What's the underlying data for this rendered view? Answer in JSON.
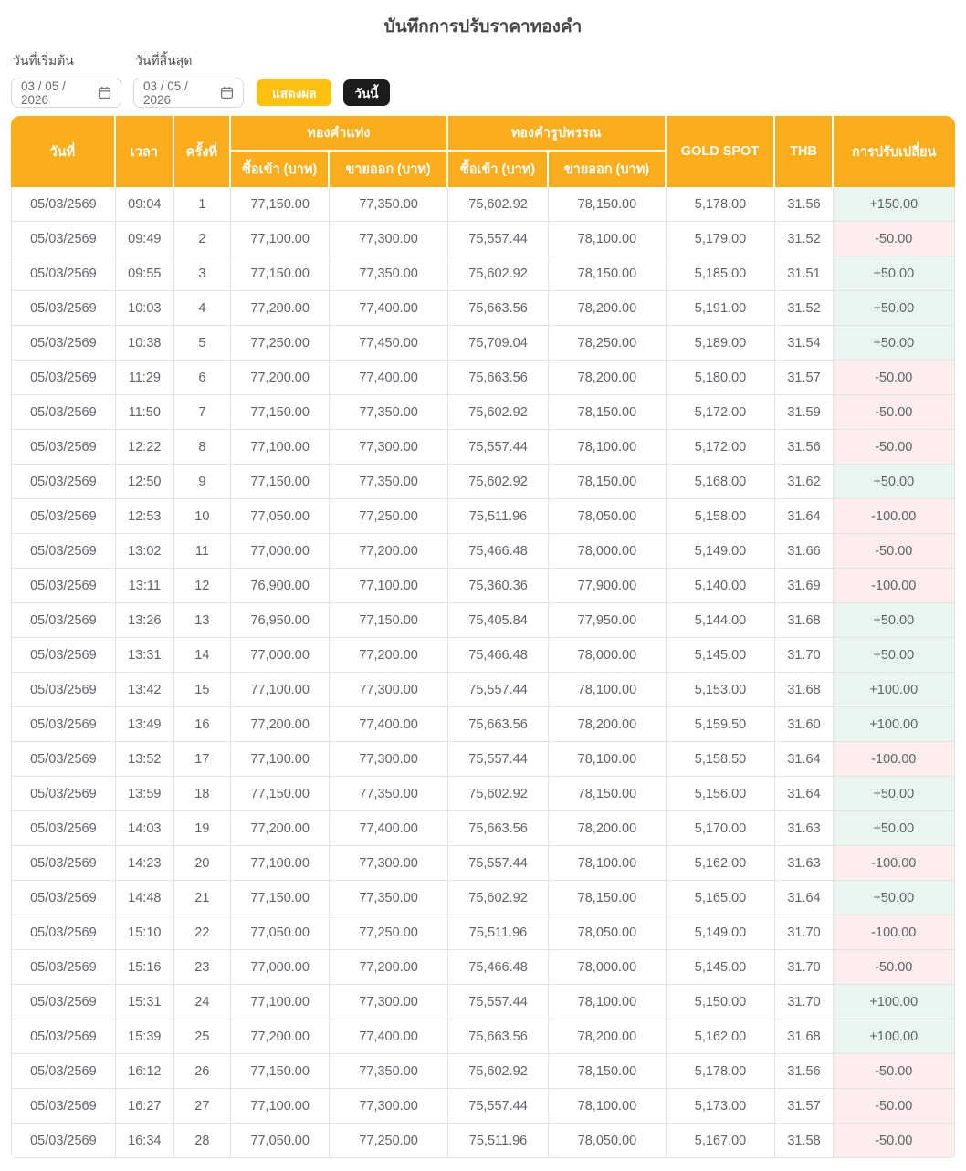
{
  "page": {
    "title": "บันทึกการปรับราคาทองคำ"
  },
  "filters": {
    "start_date": {
      "label": "วันที่เริ่มต้น",
      "value": "03 / 05 / 2026"
    },
    "end_date": {
      "label": "วันที่สิ้นสุด",
      "value": "03 / 05 / 2026"
    },
    "show_button_label": "แสดงผล",
    "today_button_label": "วันนี้"
  },
  "table": {
    "header": {
      "date": "วันที่",
      "time": "เวลา",
      "round": "ครั้งที่",
      "gold_bar_group": "ทองคำแท่ง",
      "gold_ornament_group": "ทองคำรูปพรรณ",
      "buy_baht": "ซื้อเข้า (บาท)",
      "sell_baht": "ขายออก (บาท)",
      "gold_spot": "GOLD SPOT",
      "thb": "THB",
      "change": "การปรับเปลี่ยน"
    },
    "rows": [
      {
        "date": "05/03/2569",
        "time": "09:04",
        "no": "1",
        "bar_buy": "77,150.00",
        "bar_sell": "77,350.00",
        "ornament_buy": "75,602.92",
        "ornament_sell": "78,150.00",
        "gold_spot": "5,178.00",
        "thb": "31.56",
        "change": "+150.00"
      },
      {
        "date": "05/03/2569",
        "time": "09:49",
        "no": "2",
        "bar_buy": "77,100.00",
        "bar_sell": "77,300.00",
        "ornament_buy": "75,557.44",
        "ornament_sell": "78,100.00",
        "gold_spot": "5,179.00",
        "thb": "31.52",
        "change": "-50.00"
      },
      {
        "date": "05/03/2569",
        "time": "09:55",
        "no": "3",
        "bar_buy": "77,150.00",
        "bar_sell": "77,350.00",
        "ornament_buy": "75,602.92",
        "ornament_sell": "78,150.00",
        "gold_spot": "5,185.00",
        "thb": "31.51",
        "change": "+50.00"
      },
      {
        "date": "05/03/2569",
        "time": "10:03",
        "no": "4",
        "bar_buy": "77,200.00",
        "bar_sell": "77,400.00",
        "ornament_buy": "75,663.56",
        "ornament_sell": "78,200.00",
        "gold_spot": "5,191.00",
        "thb": "31.52",
        "change": "+50.00"
      },
      {
        "date": "05/03/2569",
        "time": "10:38",
        "no": "5",
        "bar_buy": "77,250.00",
        "bar_sell": "77,450.00",
        "ornament_buy": "75,709.04",
        "ornament_sell": "78,250.00",
        "gold_spot": "5,189.00",
        "thb": "31.54",
        "change": "+50.00"
      },
      {
        "date": "05/03/2569",
        "time": "11:29",
        "no": "6",
        "bar_buy": "77,200.00",
        "bar_sell": "77,400.00",
        "ornament_buy": "75,663.56",
        "ornament_sell": "78,200.00",
        "gold_spot": "5,180.00",
        "thb": "31.57",
        "change": "-50.00"
      },
      {
        "date": "05/03/2569",
        "time": "11:50",
        "no": "7",
        "bar_buy": "77,150.00",
        "bar_sell": "77,350.00",
        "ornament_buy": "75,602.92",
        "ornament_sell": "78,150.00",
        "gold_spot": "5,172.00",
        "thb": "31.59",
        "change": "-50.00"
      },
      {
        "date": "05/03/2569",
        "time": "12:22",
        "no": "8",
        "bar_buy": "77,100.00",
        "bar_sell": "77,300.00",
        "ornament_buy": "75,557.44",
        "ornament_sell": "78,100.00",
        "gold_spot": "5,172.00",
        "thb": "31.56",
        "change": "-50.00"
      },
      {
        "date": "05/03/2569",
        "time": "12:50",
        "no": "9",
        "bar_buy": "77,150.00",
        "bar_sell": "77,350.00",
        "ornament_buy": "75,602.92",
        "ornament_sell": "78,150.00",
        "gold_spot": "5,168.00",
        "thb": "31.62",
        "change": "+50.00"
      },
      {
        "date": "05/03/2569",
        "time": "12:53",
        "no": "10",
        "bar_buy": "77,050.00",
        "bar_sell": "77,250.00",
        "ornament_buy": "75,511.96",
        "ornament_sell": "78,050.00",
        "gold_spot": "5,158.00",
        "thb": "31.64",
        "change": "-100.00"
      },
      {
        "date": "05/03/2569",
        "time": "13:02",
        "no": "11",
        "bar_buy": "77,000.00",
        "bar_sell": "77,200.00",
        "ornament_buy": "75,466.48",
        "ornament_sell": "78,000.00",
        "gold_spot": "5,149.00",
        "thb": "31.66",
        "change": "-50.00"
      },
      {
        "date": "05/03/2569",
        "time": "13:11",
        "no": "12",
        "bar_buy": "76,900.00",
        "bar_sell": "77,100.00",
        "ornament_buy": "75,360.36",
        "ornament_sell": "77,900.00",
        "gold_spot": "5,140.00",
        "thb": "31.69",
        "change": "-100.00"
      },
      {
        "date": "05/03/2569",
        "time": "13:26",
        "no": "13",
        "bar_buy": "76,950.00",
        "bar_sell": "77,150.00",
        "ornament_buy": "75,405.84",
        "ornament_sell": "77,950.00",
        "gold_spot": "5,144.00",
        "thb": "31.68",
        "change": "+50.00"
      },
      {
        "date": "05/03/2569",
        "time": "13:31",
        "no": "14",
        "bar_buy": "77,000.00",
        "bar_sell": "77,200.00",
        "ornament_buy": "75,466.48",
        "ornament_sell": "78,000.00",
        "gold_spot": "5,145.00",
        "thb": "31.70",
        "change": "+50.00"
      },
      {
        "date": "05/03/2569",
        "time": "13:42",
        "no": "15",
        "bar_buy": "77,100.00",
        "bar_sell": "77,300.00",
        "ornament_buy": "75,557.44",
        "ornament_sell": "78,100.00",
        "gold_spot": "5,153.00",
        "thb": "31.68",
        "change": "+100.00"
      },
      {
        "date": "05/03/2569",
        "time": "13:49",
        "no": "16",
        "bar_buy": "77,200.00",
        "bar_sell": "77,400.00",
        "ornament_buy": "75,663.56",
        "ornament_sell": "78,200.00",
        "gold_spot": "5,159.50",
        "thb": "31.60",
        "change": "+100.00"
      },
      {
        "date": "05/03/2569",
        "time": "13:52",
        "no": "17",
        "bar_buy": "77,100.00",
        "bar_sell": "77,300.00",
        "ornament_buy": "75,557.44",
        "ornament_sell": "78,100.00",
        "gold_spot": "5,158.50",
        "thb": "31.64",
        "change": "-100.00"
      },
      {
        "date": "05/03/2569",
        "time": "13:59",
        "no": "18",
        "bar_buy": "77,150.00",
        "bar_sell": "77,350.00",
        "ornament_buy": "75,602.92",
        "ornament_sell": "78,150.00",
        "gold_spot": "5,156.00",
        "thb": "31.64",
        "change": "+50.00"
      },
      {
        "date": "05/03/2569",
        "time": "14:03",
        "no": "19",
        "bar_buy": "77,200.00",
        "bar_sell": "77,400.00",
        "ornament_buy": "75,663.56",
        "ornament_sell": "78,200.00",
        "gold_spot": "5,170.00",
        "thb": "31.63",
        "change": "+50.00"
      },
      {
        "date": "05/03/2569",
        "time": "14:23",
        "no": "20",
        "bar_buy": "77,100.00",
        "bar_sell": "77,300.00",
        "ornament_buy": "75,557.44",
        "ornament_sell": "78,100.00",
        "gold_spot": "5,162.00",
        "thb": "31.63",
        "change": "-100.00"
      },
      {
        "date": "05/03/2569",
        "time": "14:48",
        "no": "21",
        "bar_buy": "77,150.00",
        "bar_sell": "77,350.00",
        "ornament_buy": "75,602.92",
        "ornament_sell": "78,150.00",
        "gold_spot": "5,165.00",
        "thb": "31.64",
        "change": "+50.00"
      },
      {
        "date": "05/03/2569",
        "time": "15:10",
        "no": "22",
        "bar_buy": "77,050.00",
        "bar_sell": "77,250.00",
        "ornament_buy": "75,511.96",
        "ornament_sell": "78,050.00",
        "gold_spot": "5,149.00",
        "thb": "31.70",
        "change": "-100.00"
      },
      {
        "date": "05/03/2569",
        "time": "15:16",
        "no": "23",
        "bar_buy": "77,000.00",
        "bar_sell": "77,200.00",
        "ornament_buy": "75,466.48",
        "ornament_sell": "78,000.00",
        "gold_spot": "5,145.00",
        "thb": "31.70",
        "change": "-50.00"
      },
      {
        "date": "05/03/2569",
        "time": "15:31",
        "no": "24",
        "bar_buy": "77,100.00",
        "bar_sell": "77,300.00",
        "ornament_buy": "75,557.44",
        "ornament_sell": "78,100.00",
        "gold_spot": "5,150.00",
        "thb": "31.70",
        "change": "+100.00"
      },
      {
        "date": "05/03/2569",
        "time": "15:39",
        "no": "25",
        "bar_buy": "77,200.00",
        "bar_sell": "77,400.00",
        "ornament_buy": "75,663.56",
        "ornament_sell": "78,200.00",
        "gold_spot": "5,162.00",
        "thb": "31.68",
        "change": "+100.00"
      },
      {
        "date": "05/03/2569",
        "time": "16:12",
        "no": "26",
        "bar_buy": "77,150.00",
        "bar_sell": "77,350.00",
        "ornament_buy": "75,602.92",
        "ornament_sell": "78,150.00",
        "gold_spot": "5,178.00",
        "thb": "31.56",
        "change": "-50.00"
      },
      {
        "date": "05/03/2569",
        "time": "16:27",
        "no": "27",
        "bar_buy": "77,100.00",
        "bar_sell": "77,300.00",
        "ornament_buy": "75,557.44",
        "ornament_sell": "78,100.00",
        "gold_spot": "5,173.00",
        "thb": "31.57",
        "change": "-50.00"
      },
      {
        "date": "05/03/2569",
        "time": "16:34",
        "no": "28",
        "bar_buy": "77,050.00",
        "bar_sell": "77,250.00",
        "ornament_buy": "75,511.96",
        "ornament_sell": "78,050.00",
        "gold_spot": "5,167.00",
        "thb": "31.58",
        "change": "-50.00"
      }
    ]
  },
  "colors": {
    "header_bg": "#FBAD1B",
    "show_button_bg": "#FFC10E",
    "today_button_bg": "#1C1C1C",
    "positive_bg": "#E9F6EF",
    "negative_bg": "#FDEDED",
    "body_text": "#5F6368"
  }
}
